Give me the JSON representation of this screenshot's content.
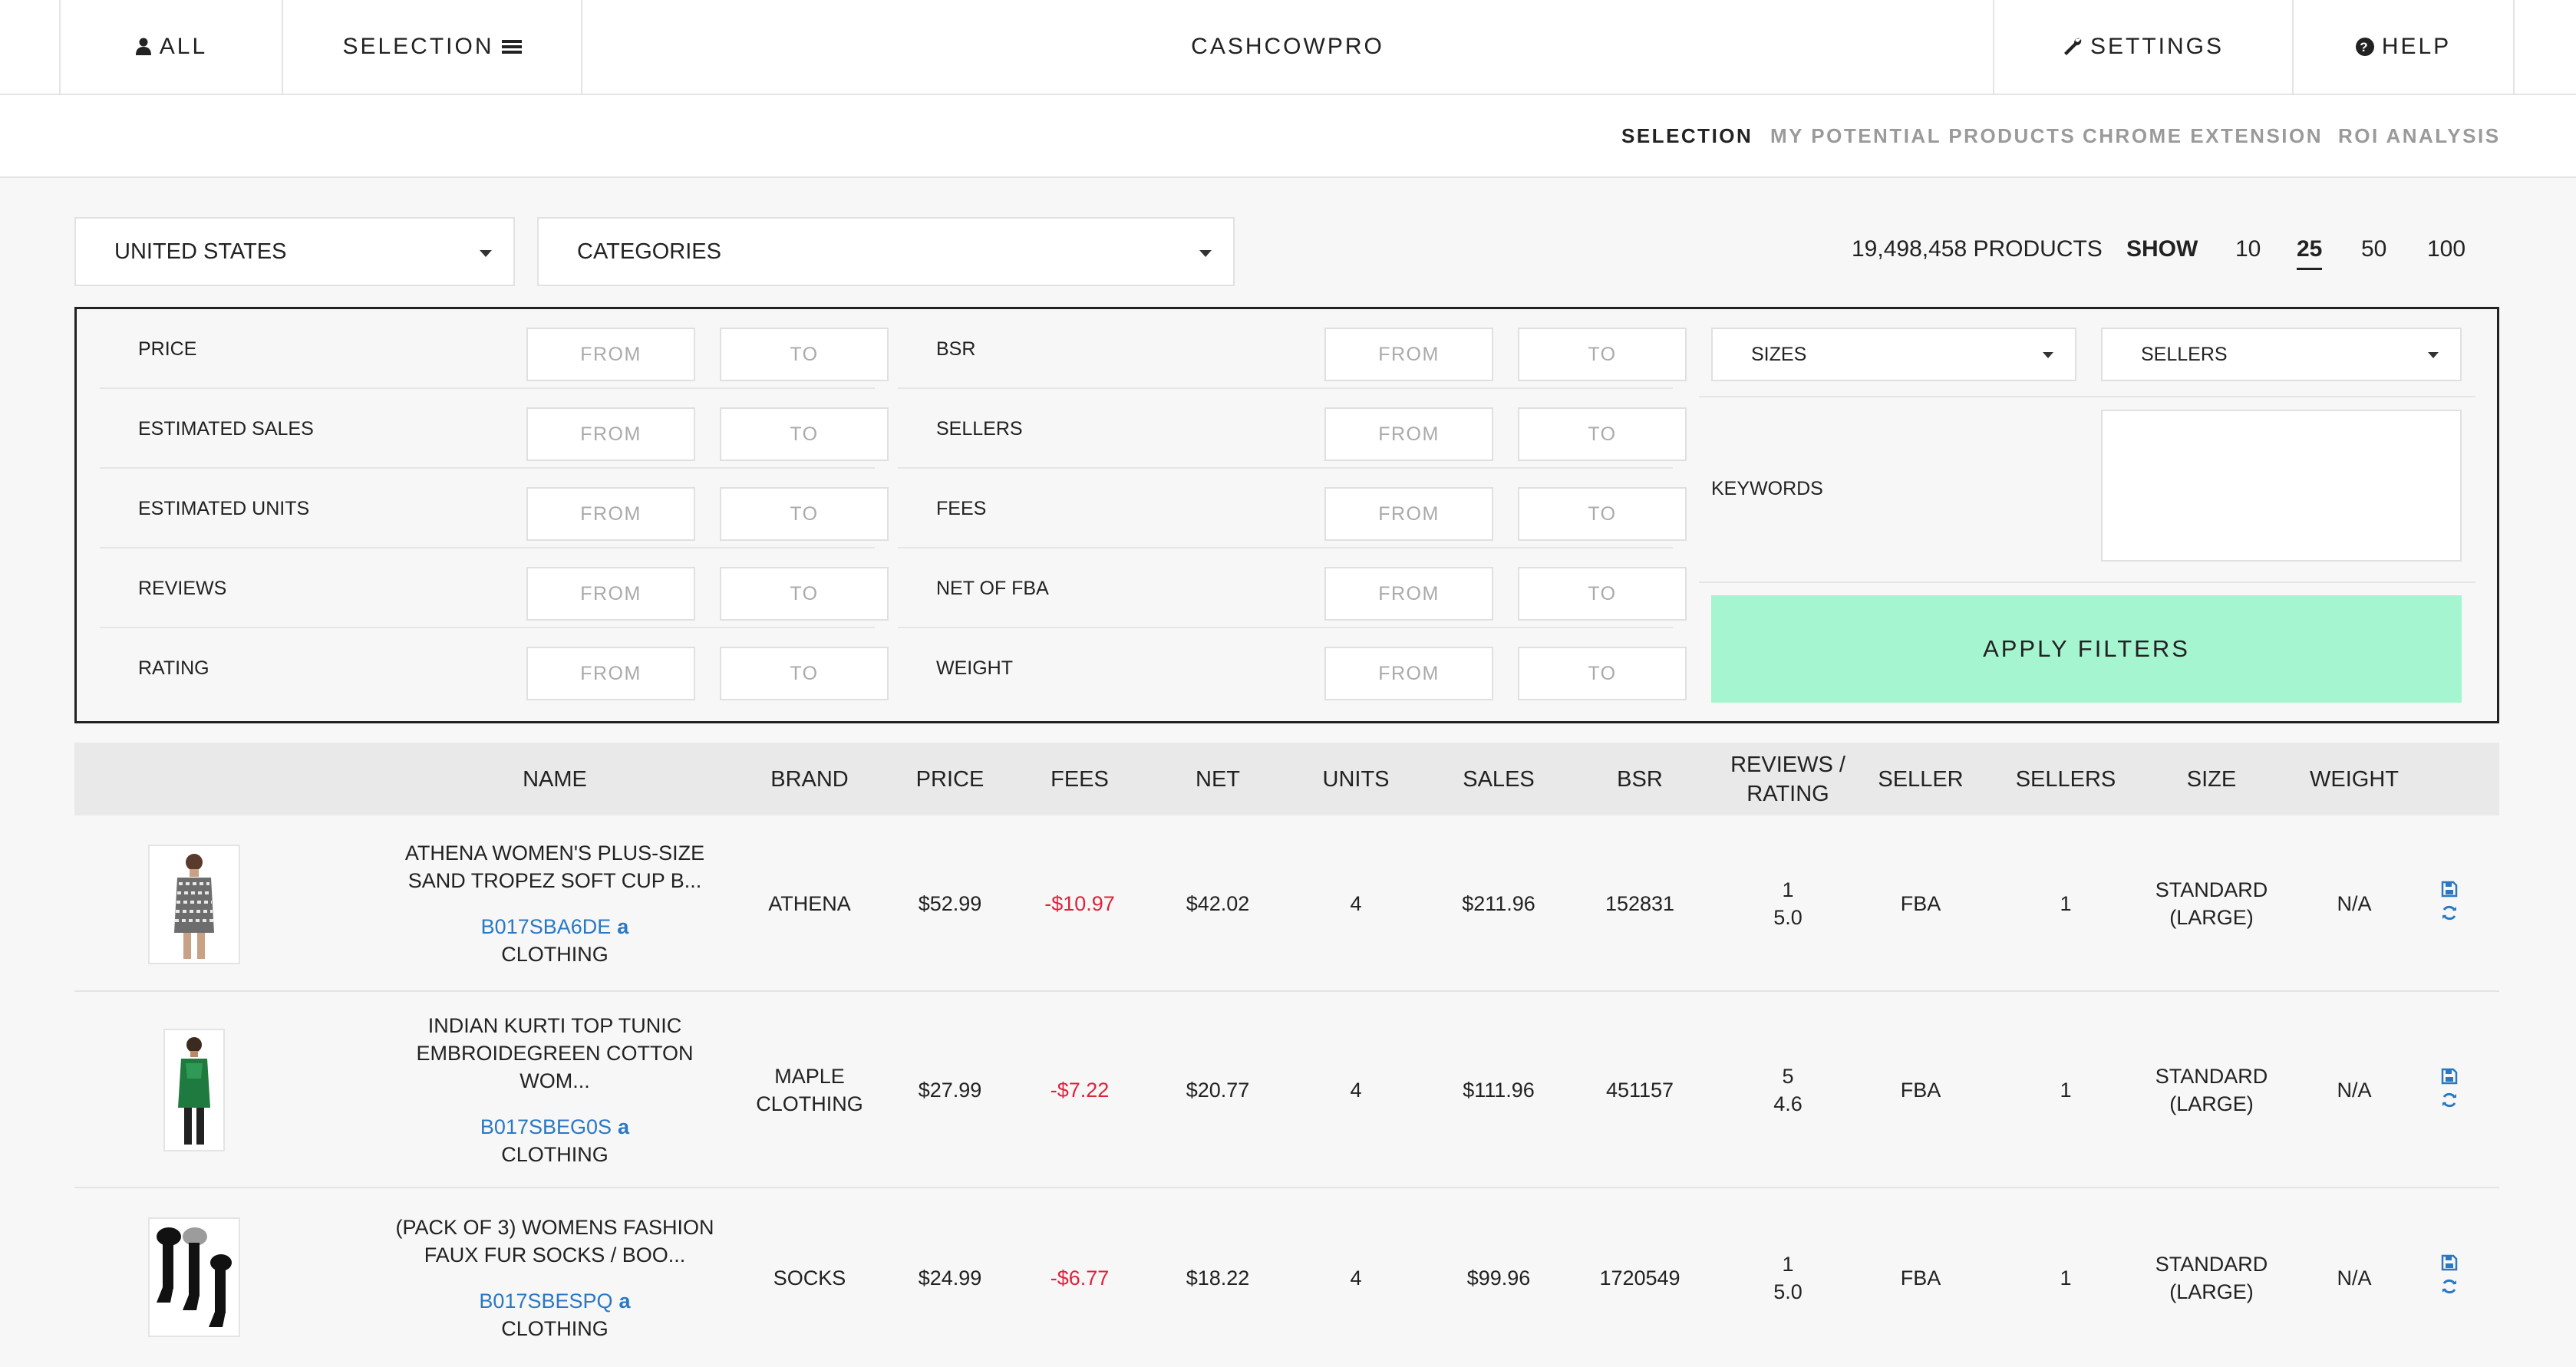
{
  "nav": {
    "all": "ALL",
    "selection": "SELECTION",
    "brand": "CASHCOWPRO",
    "settings": "SETTINGS",
    "help": "HELP"
  },
  "subnav": {
    "items": [
      {
        "label": "SELECTION",
        "active": true
      },
      {
        "label": "MY POTENTIAL PRODUCTS",
        "active": false
      },
      {
        "label": "CHROME EXTENSION",
        "active": false
      },
      {
        "label": "ROI ANALYSIS",
        "active": false
      }
    ]
  },
  "controls": {
    "country": "UNITED STATES",
    "categories": "CATEGORIES",
    "products_count": "19,498,458 PRODUCTS",
    "show_label": "SHOW",
    "page_sizes": [
      "10",
      "25",
      "50",
      "100"
    ],
    "selected_page_size": "25"
  },
  "filters": {
    "from_placeholder": "FROM",
    "to_placeholder": "TO",
    "left": [
      "PRICE",
      "ESTIMATED SALES",
      "ESTIMATED UNITS",
      "REVIEWS",
      "RATING"
    ],
    "middle": [
      "BSR",
      "SELLERS",
      "FEES",
      "NET OF FBA",
      "WEIGHT"
    ],
    "sizes": "SIZES",
    "sellers": "SELLERS",
    "keywords_label": "KEYWORDS",
    "apply": "APPLY FILTERS"
  },
  "table": {
    "headers": {
      "name": "NAME",
      "brand": "BRAND",
      "price": "PRICE",
      "fees": "FEES",
      "net": "NET",
      "units": "UNITS",
      "sales": "SALES",
      "bsr": "BSR",
      "reviews_line1": "REVIEWS /",
      "reviews_line2": "RATING",
      "seller": "SELLER",
      "sellers": "SELLERS",
      "size": "SIZE",
      "weight": "WEIGHT"
    },
    "rows": [
      {
        "title_line1": "ATHENA WOMEN'S PLUS-SIZE",
        "title_line2": "SAND TROPEZ SOFT CUP B...",
        "title_line3": "",
        "asin": "B017SBA6DE",
        "category": "CLOTHING",
        "brand_line1": "ATHENA",
        "brand_line2": "",
        "price": "$52.99",
        "fees": "-$10.97",
        "net": "$42.02",
        "units": "4",
        "sales": "$211.96",
        "bsr": "152831",
        "reviews": "1",
        "rating": "5.0",
        "seller": "FBA",
        "sellers": "1",
        "size_line1": "STANDARD",
        "size_line2": "(LARGE)",
        "weight": "N/A",
        "thumb": "patterned-dress-image"
      },
      {
        "title_line1": "INDIAN KURTI TOP TUNIC",
        "title_line2": "EMBROIDEGREEN COTTON",
        "title_line3": "WOM...",
        "asin": "B017SBEG0S",
        "category": "CLOTHING",
        "brand_line1": "MAPLE",
        "brand_line2": "CLOTHING",
        "price": "$27.99",
        "fees": "-$7.22",
        "net": "$20.77",
        "units": "4",
        "sales": "$111.96",
        "bsr": "451157",
        "reviews": "5",
        "rating": "4.6",
        "seller": "FBA",
        "sellers": "1",
        "size_line1": "STANDARD",
        "size_line2": "(LARGE)",
        "weight": "N/A",
        "thumb": "green-tunic-image"
      },
      {
        "title_line1": "(PACK OF 3) WOMENS FASHION",
        "title_line2": "FAUX FUR SOCKS / BOO...",
        "title_line3": "",
        "asin": "B017SBESPQ",
        "category": "CLOTHING",
        "brand_line1": "SOCKS",
        "brand_line2": "",
        "price": "$24.99",
        "fees": "-$6.77",
        "net": "$18.22",
        "units": "4",
        "sales": "$99.96",
        "bsr": "1720549",
        "reviews": "1",
        "rating": "5.0",
        "seller": "FBA",
        "sellers": "1",
        "size_line1": "STANDARD",
        "size_line2": "(LARGE)",
        "weight": "N/A",
        "thumb": "black-fur-socks-image"
      }
    ]
  },
  "colors": {
    "apply_button": "#a6f5d1",
    "fees_negative": "#e0213b",
    "asin_link": "#2a78c2",
    "header_bg": "#e9e9e9"
  },
  "icons": {
    "all": "user-icon",
    "selection": "menu-icon",
    "settings": "wrench-icon",
    "help": "question-circle-icon",
    "save": "save-icon",
    "refresh": "refresh-icon",
    "amazon": "amazon-icon"
  }
}
